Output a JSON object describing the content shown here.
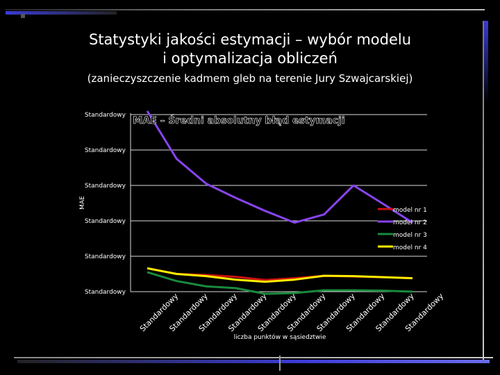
{
  "slide": {
    "title_line1": "Statystyki jakości estymacji – wybór modelu",
    "title_line2": "i optymalizacja obliczeń",
    "subtitle": "(zanieczyszczenie kadmem gleb na terenie Jury Szwajcarskiej)",
    "accent_color": "#3b3bd6"
  },
  "chart_data": {
    "type": "line",
    "title": "MAE – Średni absolutny błąd estymacji",
    "xlabel": "liczba punktów w sąsiedztwie",
    "ylabel": "MAE",
    "y_tick_labels": [
      "Standardowy",
      "Standardowy",
      "Standardowy",
      "Standardowy",
      "Standardowy",
      "Standardowy"
    ],
    "categories": [
      "Standardowy",
      "Standardowy",
      "Standardowy",
      "Standardowy",
      "Standardowy",
      "Standardowy",
      "Standardowy",
      "Standardowy",
      "Standardowy",
      "Standardowy"
    ],
    "ylim": [
      0,
      5
    ],
    "grid": true,
    "legend": "right",
    "series": [
      {
        "name": "model nr 1",
        "color": "#cc1111",
        "values": [
          0.66,
          0.5,
          0.47,
          0.42,
          0.33,
          0.38,
          0.45,
          0.43,
          0.41,
          0.38
        ]
      },
      {
        "name": "model nr 2",
        "color": "#8844ee",
        "values": [
          5.1,
          3.75,
          3.05,
          2.65,
          2.28,
          1.95,
          2.18,
          3.0,
          2.48,
          1.95
        ]
      },
      {
        "name": "model nr 3",
        "color": "#1a8a3c",
        "values": [
          0.55,
          0.3,
          0.15,
          0.1,
          -0.06,
          -0.04,
          0.04,
          0.04,
          0.03,
          0.0
        ]
      },
      {
        "name": "model nr 4",
        "color": "#ffee00",
        "values": [
          0.66,
          0.5,
          0.44,
          0.34,
          0.28,
          0.34,
          0.45,
          0.44,
          0.41,
          0.38
        ]
      }
    ]
  }
}
